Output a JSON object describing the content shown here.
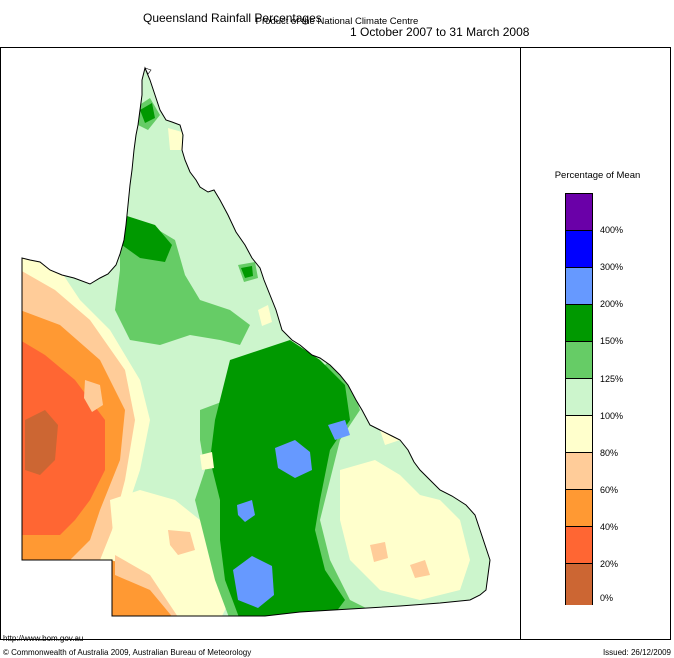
{
  "header": {
    "title": "Queensland Rainfall Percentages",
    "period": "1 October 2007 to 31 March 2008",
    "subtitle": "Product of the National Climate Centre"
  },
  "legend": {
    "title": "Percentage of Mean",
    "classes": [
      {
        "label": "400%",
        "color": "#6a00a8"
      },
      {
        "label": "300%",
        "color": "#0000ff"
      },
      {
        "label": "200%",
        "color": "#6699ff"
      },
      {
        "label": "150%",
        "color": "#009900"
      },
      {
        "label": "125%",
        "color": "#66cc66"
      },
      {
        "label": "100%",
        "color": "#ccf5cc"
      },
      {
        "label": "80%",
        "color": "#ffffcc"
      },
      {
        "label": "60%",
        "color": "#ffcc99"
      },
      {
        "label": "40%",
        "color": "#ff9933"
      },
      {
        "label": "20%",
        "color": "#ff6633"
      },
      {
        "label": "0%",
        "color": "#cc6633"
      }
    ]
  },
  "footer": {
    "url": "http://www.bom.gov.au",
    "copyright": "© Commonwealth of Australia 2009, Australian Bureau of Meteorology",
    "issued": "Issued: 26/12/2009"
  }
}
